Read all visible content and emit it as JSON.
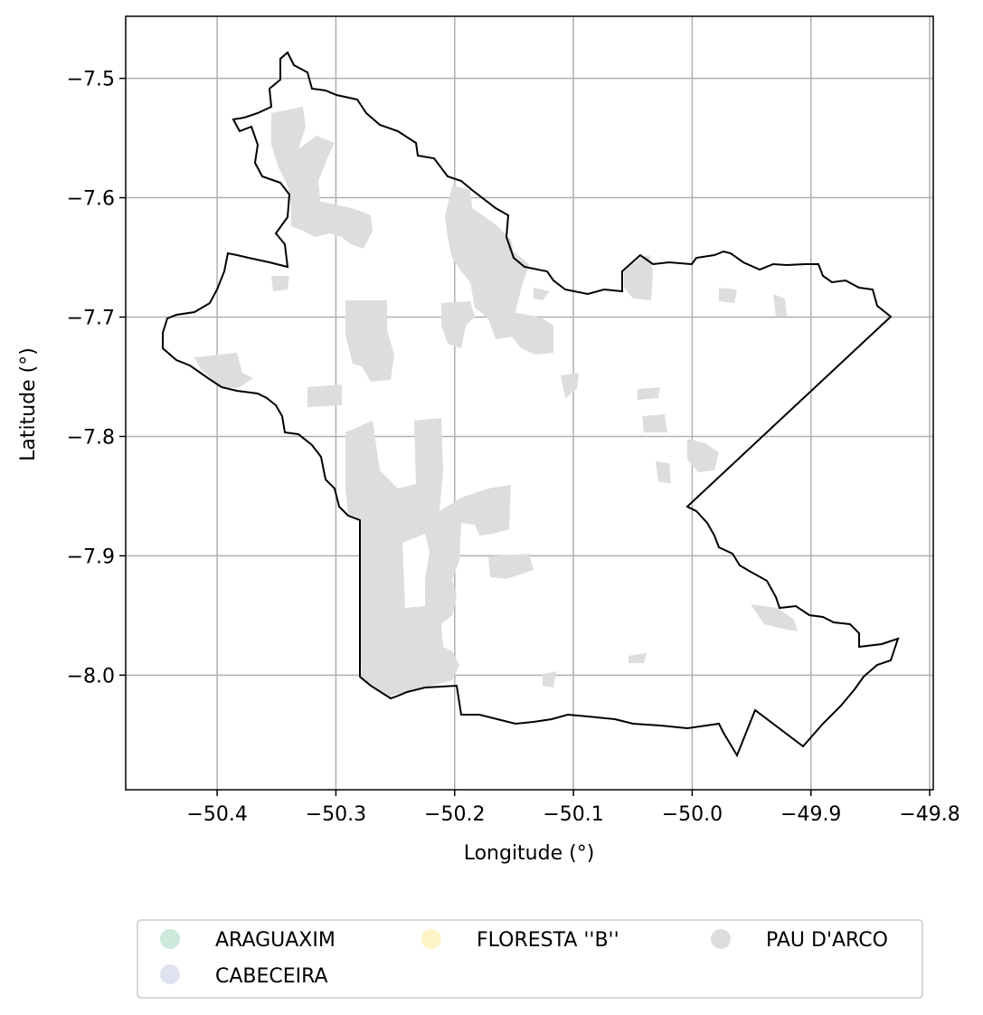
{
  "axes": {
    "xlabel": "Longitude (°)",
    "ylabel": "Latitude (°)",
    "xlim": [
      -50.477,
      -49.797
    ],
    "ylim": [
      -8.096,
      -7.448
    ],
    "x_ticks": [
      -50.4,
      -50.3,
      -50.2,
      -50.1,
      -50.0,
      -49.9,
      -49.8
    ],
    "x_tick_labels": [
      "−50.4",
      "−50.3",
      "−50.2",
      "−50.1",
      "−50.0",
      "−49.9",
      "−49.8"
    ],
    "y_ticks": [
      -7.5,
      -7.6,
      -7.7,
      -7.8,
      -7.9,
      -8.0
    ],
    "y_tick_labels": [
      "−7.5",
      "−7.6",
      "−7.7",
      "−7.8",
      "−7.9",
      "−8.0"
    ],
    "grid": true
  },
  "legend": {
    "placement": "bottom-center",
    "items": [
      {
        "label": "ARAGUAXIM",
        "color": "#cce9dc"
      },
      {
        "label": "CABECEIRA",
        "color": "#dfe3f0"
      },
      {
        "label": "FLORESTA ''B''",
        "color": "#fef3c7"
      },
      {
        "label": "PAU D'ARCO",
        "color": "#dddddd"
      }
    ]
  },
  "colors": {
    "boundary": "#000000",
    "grid": "#b0b0b0",
    "fill": "#dddddd"
  }
}
